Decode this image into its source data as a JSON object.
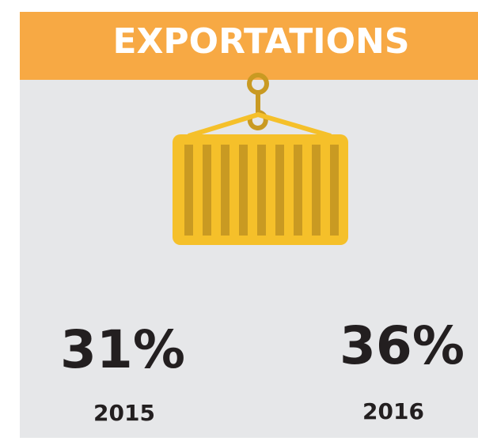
{
  "header": {
    "title": "EXPORTATIONS"
  },
  "stats": [
    {
      "value": "31%",
      "year": "2015"
    },
    {
      "value": "36%",
      "year": "2016"
    }
  ]
}
